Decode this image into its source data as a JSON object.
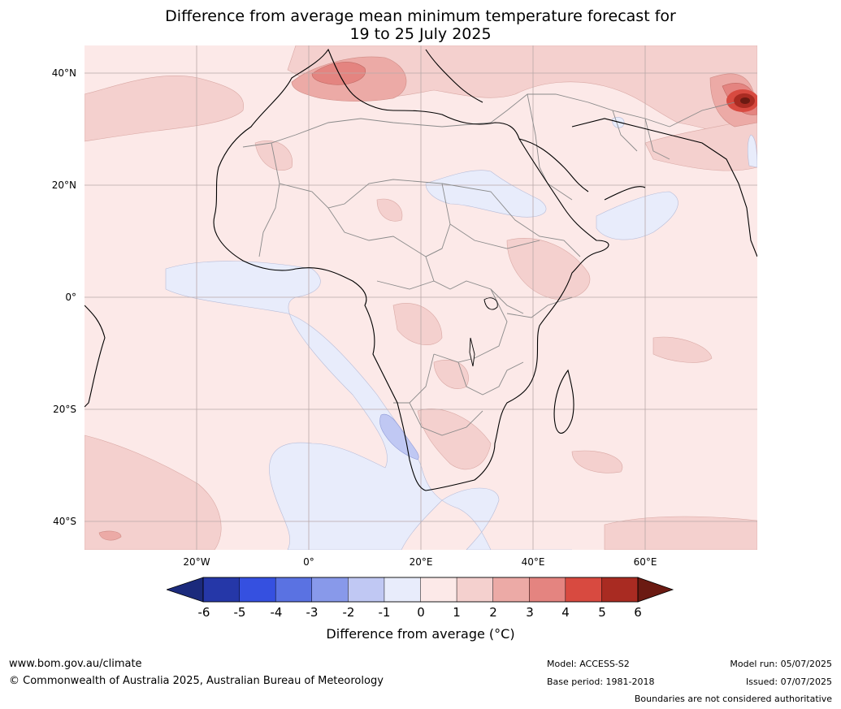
{
  "title": {
    "line1": "Difference from average mean minimum temperature forecast for",
    "line2": "19 to 25 July 2025"
  },
  "map": {
    "region": "Africa",
    "lat_labels": [
      "40°N",
      "20°N",
      "0°",
      "20°S",
      "40°S"
    ],
    "lon_labels": [
      "20°W",
      "0°",
      "20°E",
      "40°E",
      "60°E"
    ],
    "colors": {
      "ocean_land_base": "#fce9e8",
      "anomaly_0_1": "#fce9e8",
      "anomaly_1_2": "#f4d0ce",
      "anomaly_2_3": "#ecaaa6",
      "anomaly_3_4": "#e48480",
      "anomaly_4_5": "#d84a40",
      "anomaly_5_6": "#a92b22",
      "anomaly_gt6": "#6b1a12",
      "anomaly_m1_0": "#e8ecfb",
      "anomaly_m2_m1": "#c0c8f3"
    }
  },
  "colorbar": {
    "title": "Difference from average (°C)",
    "ticks": [
      "-6",
      "-5",
      "-4",
      "-3",
      "-2",
      "-1",
      "0",
      "1",
      "2",
      "3",
      "4",
      "5",
      "6"
    ],
    "colors": [
      "#1b2a7c",
      "#2537a8",
      "#3550e0",
      "#5a72e2",
      "#8899ea",
      "#c0c8f3",
      "#e8ecfb",
      "#fce9e8",
      "#f4d0ce",
      "#ecaaa6",
      "#e48480",
      "#d84a40",
      "#a92b22",
      "#6b1a12"
    ]
  },
  "footer": {
    "website": "www.bom.gov.au/climate",
    "copyright": "© Commonwealth of Australia 2025, Australian Bureau of Meteorology",
    "model": "Model: ACCESS-S2",
    "base_period": "Base period: 1981-2018",
    "model_run": "Model run: 05/07/2025",
    "issued": "Issued: 07/07/2025",
    "boundaries_note": "Boundaries are not considered authoritative"
  }
}
